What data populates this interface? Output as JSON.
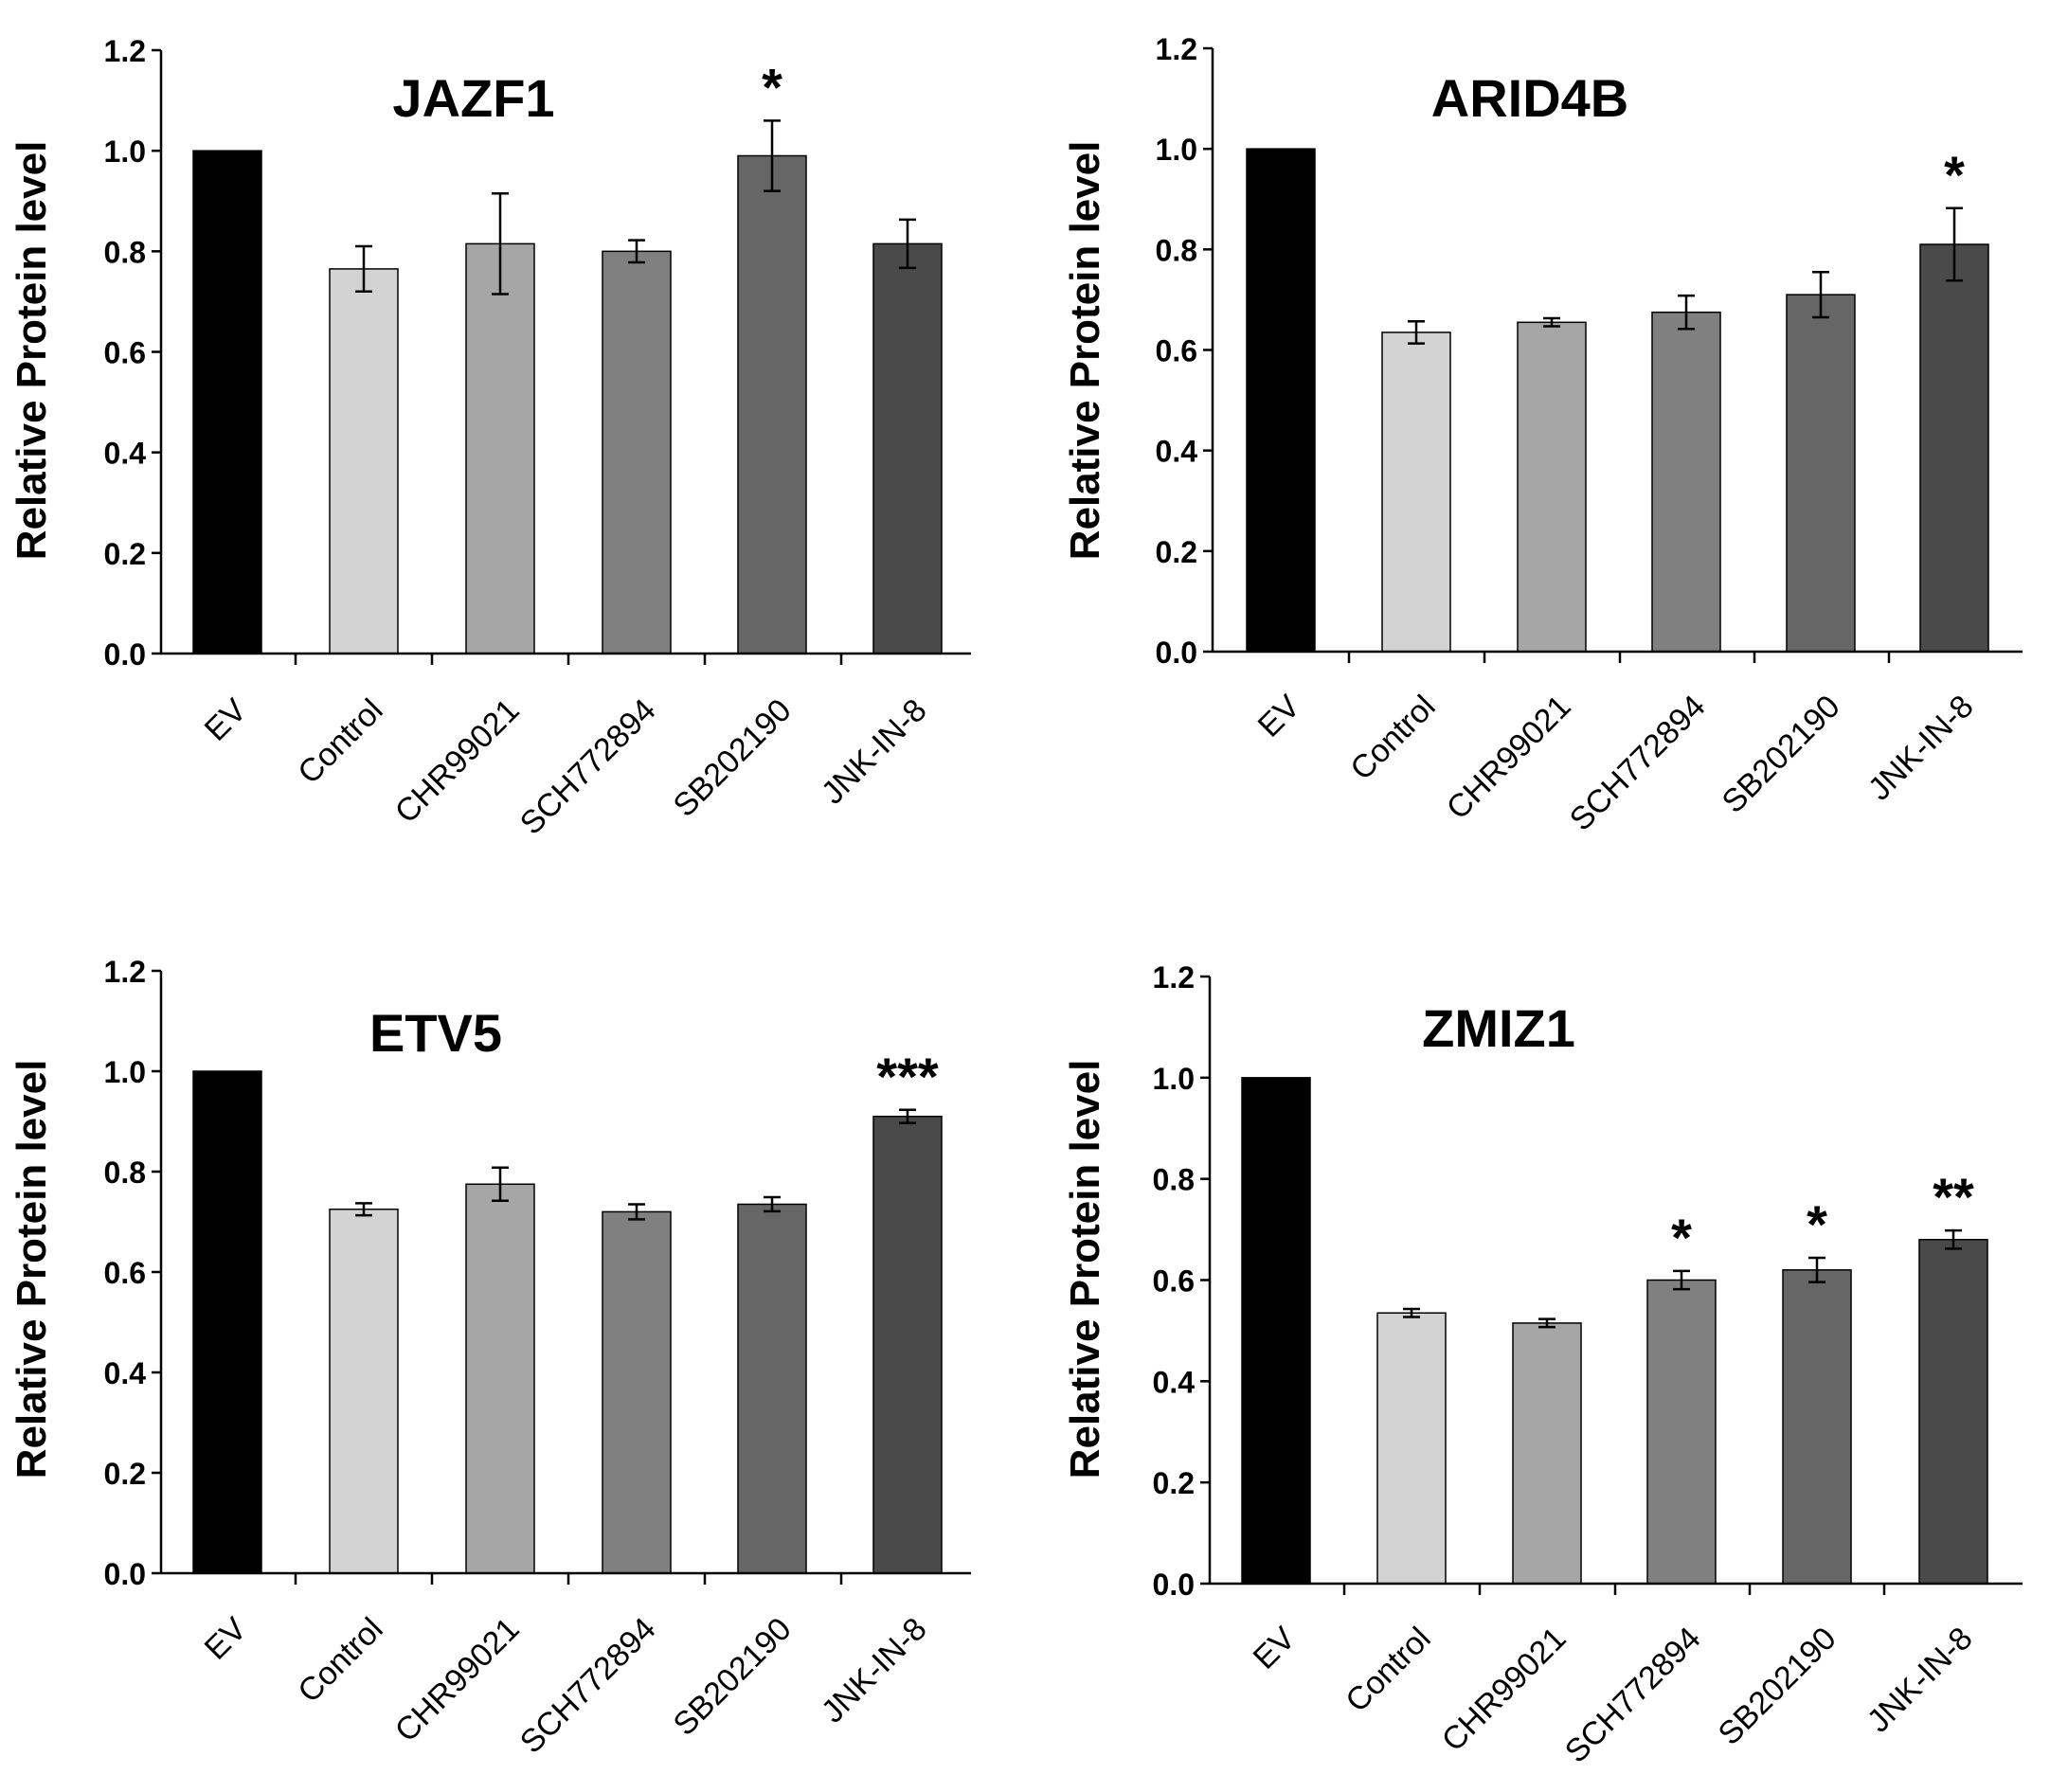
{
  "figure": {
    "colors": {
      "EV": "#000000",
      "Control": "#d3d3d3",
      "CHR99021": "#a6a6a6",
      "SCH772894": "#808080",
      "SB202190": "#666666",
      "JNK-IN-8": "#4a4a4a",
      "axis": "#000000"
    }
  },
  "chart_data": [
    {
      "type": "bar",
      "title": "JAZF1",
      "xlabel": "",
      "ylabel": "Relative Protein level",
      "ylim": [
        0,
        1.2
      ],
      "yticks": [
        "0.0",
        "0.2",
        "0.4",
        "0.6",
        "0.8",
        "1.0",
        "1.2"
      ],
      "categories": [
        "EV",
        "Control",
        "CHR99021",
        "SCH772894",
        "SB202190",
        "JNK-IN-8"
      ],
      "values": [
        1.0,
        0.765,
        0.815,
        0.8,
        0.99,
        0.815
      ],
      "errors": [
        0,
        0.045,
        0.1,
        0.022,
        0.07,
        0.048
      ],
      "significance": [
        "",
        "",
        "",
        "",
        "*",
        ""
      ]
    },
    {
      "type": "bar",
      "title": "ARID4B",
      "xlabel": "",
      "ylabel": "Relative Protein level",
      "ylim": [
        0,
        1.2
      ],
      "yticks": [
        "0.0",
        "0.2",
        "0.4",
        "0.6",
        "0.8",
        "1.0",
        "1.2"
      ],
      "categories": [
        "EV",
        "Control",
        "CHR99021",
        "SCH772894",
        "SB202190",
        "JNK-IN-8"
      ],
      "values": [
        1.0,
        0.635,
        0.655,
        0.675,
        0.71,
        0.81
      ],
      "errors": [
        0,
        0.022,
        0.008,
        0.033,
        0.045,
        0.072
      ],
      "significance": [
        "",
        "",
        "",
        "",
        "",
        "*"
      ]
    },
    {
      "type": "bar",
      "title": "ETV5",
      "xlabel": "",
      "ylabel": "Relative Protein level",
      "ylim": [
        0,
        1.2
      ],
      "yticks": [
        "0.0",
        "0.2",
        "0.4",
        "0.6",
        "0.8",
        "1.0",
        "1.2"
      ],
      "categories": [
        "EV",
        "Control",
        "CHR99021",
        "SCH772894",
        "SB202190",
        "JNK-IN-8"
      ],
      "values": [
        1.0,
        0.725,
        0.775,
        0.72,
        0.735,
        0.91
      ],
      "errors": [
        0,
        0.012,
        0.033,
        0.015,
        0.014,
        0.013
      ],
      "significance": [
        "",
        "",
        "",
        "",
        "",
        "***"
      ]
    },
    {
      "type": "bar",
      "title": "ZMIZ1",
      "xlabel": "",
      "ylabel": "Relative Protein level",
      "ylim": [
        0,
        1.2
      ],
      "yticks": [
        "0.0",
        "0.2",
        "0.4",
        "0.6",
        "0.8",
        "1.0",
        "1.2"
      ],
      "categories": [
        "EV",
        "Control",
        "CHR99021",
        "SCH772894",
        "SB202190",
        "JNK-IN-8"
      ],
      "values": [
        1.0,
        0.535,
        0.515,
        0.6,
        0.62,
        0.68
      ],
      "errors": [
        0,
        0.008,
        0.008,
        0.018,
        0.024,
        0.018
      ],
      "significance": [
        "",
        "",
        "",
        "*",
        "*",
        "**"
      ]
    }
  ]
}
